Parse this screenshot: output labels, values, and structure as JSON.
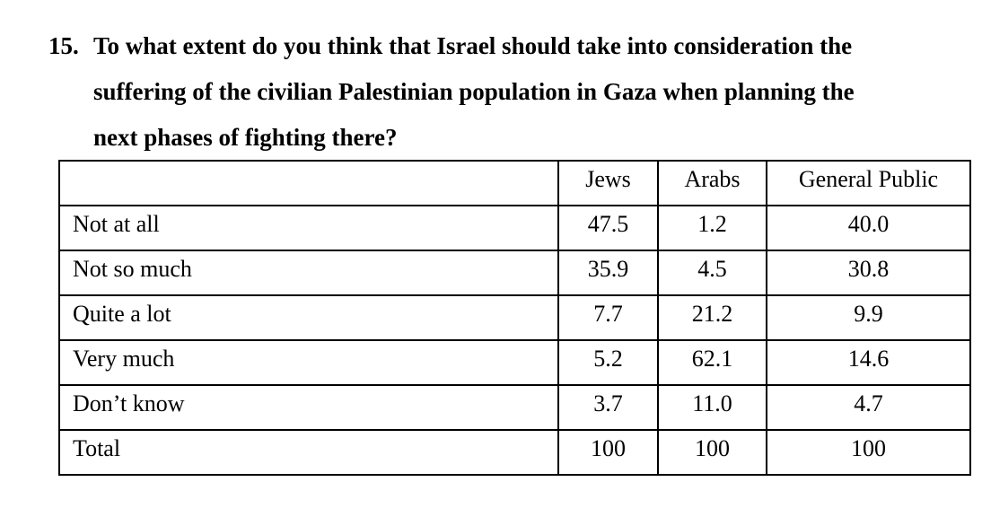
{
  "question": {
    "number": "15.",
    "lines": [
      "To what extent do you think that Israel should take into consideration the",
      "suffering of the civilian Palestinian population in Gaza when planning the",
      "next phases of fighting there?"
    ]
  },
  "table": {
    "headers": [
      "",
      "Jews",
      "Arabs",
      "General Public"
    ],
    "rows": [
      {
        "label": "Not at all",
        "jews": "47.5",
        "arabs": "1.2",
        "general": "40.0"
      },
      {
        "label": "Not so much",
        "jews": "35.9",
        "arabs": "4.5",
        "general": "30.8"
      },
      {
        "label": "Quite a lot",
        "jews": "7.7",
        "arabs": "21.2",
        "general": "9.9"
      },
      {
        "label": "Very much",
        "jews": "5.2",
        "arabs": "62.1",
        "general": "14.6"
      },
      {
        "label": "Don’t know",
        "jews": "3.7",
        "arabs": "11.0",
        "general": "4.7"
      },
      {
        "label": "Total",
        "jews": "100",
        "arabs": "100",
        "general": "100"
      }
    ]
  }
}
